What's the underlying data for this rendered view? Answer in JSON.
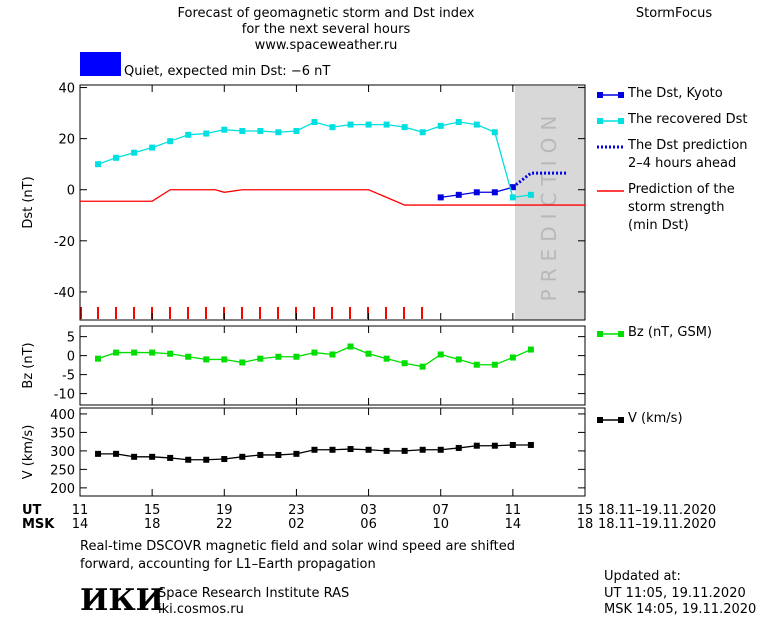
{
  "header": {
    "title": [
      "Forecast of geomagnetic storm and Dst index",
      "for the next several hours",
      "www.spaceweather.ru"
    ],
    "brand": "StormFocus",
    "status": "Quiet, expected min Dst: −6 nT",
    "status_color": "#0000ff"
  },
  "x_axis": {
    "xlim": [
      0,
      28
    ],
    "xticks": [
      {
        "value": 0,
        "label": "11"
      },
      {
        "value": 4,
        "label": "15"
      },
      {
        "value": 8,
        "label": "19"
      },
      {
        "value": 12,
        "label": "23"
      },
      {
        "value": 16,
        "label": "03"
      },
      {
        "value": 20,
        "label": "07"
      },
      {
        "value": 24,
        "label": "11"
      },
      {
        "value": 28,
        "label": "15"
      }
    ],
    "x2ticks": [
      {
        "value": 0,
        "label": "14"
      },
      {
        "value": 4,
        "label": "18"
      },
      {
        "value": 8,
        "label": "22"
      },
      {
        "value": 12,
        "label": "02"
      },
      {
        "value": 16,
        "label": "06"
      },
      {
        "value": 20,
        "label": "10"
      },
      {
        "value": 24,
        "label": "14"
      },
      {
        "value": 28,
        "label": "18"
      }
    ],
    "label": "UT",
    "label2": "MSK",
    "range": "18.11–19.11.2020",
    "range2": "18.11–19.11.2020"
  },
  "chart_data": [
    {
      "type": "line",
      "ylabel": "Dst (nT)",
      "ylim": [
        -51,
        41
      ],
      "yticks": [
        40,
        20,
        0,
        -20,
        -40
      ],
      "annotation": "PREDICTION",
      "series": [
        {
          "name": "The Dst, Kyoto",
          "color": "#0000e0",
          "marker": "square",
          "dash": "solid",
          "x": [
            20,
            21,
            22,
            23,
            24
          ],
          "values": [
            -3,
            -2,
            -1,
            -1,
            1
          ]
        },
        {
          "name": "The recovered Dst",
          "color": "#00e0e0",
          "marker": "square",
          "dash": "solid",
          "x": [
            1,
            2,
            3,
            4,
            5,
            6,
            7,
            8,
            9,
            10,
            11,
            12,
            13,
            14,
            15,
            16,
            17,
            18,
            19,
            20,
            21,
            22,
            23,
            24,
            25
          ],
          "values": [
            10,
            12.5,
            14.5,
            16.5,
            19,
            21.5,
            22,
            23.5,
            23,
            23,
            22.5,
            23,
            26.5,
            24.5,
            25.5,
            25.5,
            25.5,
            24.5,
            22.5,
            25,
            26.5,
            25.5,
            22.5,
            -3,
            -2
          ]
        },
        {
          "name": "The Dst prediction\n2–4 hours ahead",
          "color": "#0000e0",
          "marker": "none",
          "dash": "dotted",
          "x": [
            24,
            25,
            27
          ],
          "values": [
            1,
            6.5,
            6.5
          ]
        },
        {
          "name": "Prediction of the\nstorm strength\n(min Dst)",
          "color": "#ff0000",
          "marker": "none",
          "dash": "solid",
          "x": [
            0,
            4,
            5,
            7.5,
            8,
            9,
            16,
            18,
            28
          ],
          "values": [
            -4.5,
            -4.5,
            0,
            0,
            -1,
            0,
            0,
            -6,
            -6
          ]
        }
      ]
    },
    {
      "type": "line",
      "ylabel": "Bz (nT)",
      "ylim": [
        -13,
        7.8
      ],
      "yticks": [
        5,
        0,
        -5,
        -10
      ],
      "series": [
        {
          "name": "Bz (nT, GSM)",
          "color": "#00dd00",
          "marker": "square",
          "dash": "solid",
          "x": [
            1,
            2,
            3,
            4,
            5,
            6,
            7,
            8,
            9,
            10,
            11,
            12,
            13,
            14,
            15,
            16,
            17,
            18,
            19,
            20,
            21,
            22,
            23,
            24,
            25
          ],
          "values": [
            -0.8,
            0.8,
            0.8,
            0.8,
            0.5,
            -0.3,
            -1,
            -1,
            -1.8,
            -0.8,
            -0.3,
            -0.3,
            0.8,
            0.3,
            2.4,
            0.5,
            -0.8,
            -2,
            -2.9,
            0.3,
            -1,
            -2.4,
            -2.4,
            -0.5,
            1.6
          ]
        }
      ]
    },
    {
      "type": "line",
      "ylabel": "V (km/s)",
      "ylim": [
        178,
        416
      ],
      "yticks": [
        400,
        350,
        300,
        250,
        200
      ],
      "series": [
        {
          "name": "V (km/s)",
          "color": "#000000",
          "marker": "square",
          "dash": "solid",
          "x": [
            1,
            2,
            3,
            4,
            5,
            6,
            7,
            8,
            9,
            10,
            11,
            12,
            13,
            14,
            15,
            16,
            17,
            18,
            19,
            20,
            21,
            22,
            23,
            24,
            25
          ],
          "values": [
            292,
            292,
            284,
            284,
            281,
            276,
            276,
            278,
            284,
            289,
            289,
            292,
            303,
            303,
            305,
            303,
            300,
            300,
            303,
            303,
            308,
            314,
            314,
            316,
            316
          ]
        }
      ]
    }
  ],
  "footer": {
    "note": "Real-time DSCOVR magnetic field and solar wind speed are shifted\nforward, accounting for L1–Earth propagation",
    "logo": "ИКИ",
    "institute": "Space Research Institute RAS",
    "site": "iki.cosmos.ru",
    "updated": [
      "Updated at:",
      "UT   11:05, 19.11.2020",
      "MSK 14:05, 19.11.2020"
    ]
  }
}
